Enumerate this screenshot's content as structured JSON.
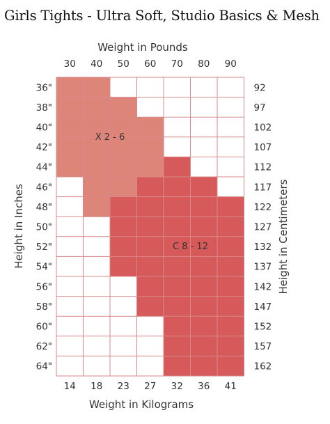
{
  "page": {
    "title": "Girls Tights - Ultra Soft, Studio Basics & Mesh"
  },
  "chart_data": {
    "type": "heatmap",
    "x_top_label": "Weight in Pounds",
    "x_top_ticks": [
      "30",
      "40",
      "50",
      "60",
      "70",
      "80",
      "90"
    ],
    "x_bottom_label": "Weight in Kilograms",
    "x_bottom_ticks": [
      "14",
      "18",
      "23",
      "27",
      "32",
      "36",
      "41"
    ],
    "y_left_label": "Height in Inches",
    "y_left_ticks": [
      "36\"",
      "38\"",
      "40\"",
      "42\"",
      "44\"",
      "46\"",
      "48\"",
      "50\"",
      "52\"",
      "54\"",
      "56\"",
      "58\"",
      "60\"",
      "62\"",
      "64\""
    ],
    "y_right_label": "Height in Centimeters",
    "y_right_ticks": [
      "92",
      "97",
      "102",
      "107",
      "112",
      "117",
      "122",
      "127",
      "132",
      "137",
      "142",
      "147",
      "152",
      "157",
      "162"
    ],
    "sizes": [
      {
        "name": "X 2 - 6",
        "color": "#de8579",
        "cells": [
          [
            0,
            0
          ],
          [
            0,
            1
          ],
          [
            1,
            0
          ],
          [
            1,
            1
          ],
          [
            1,
            2
          ],
          [
            2,
            0
          ],
          [
            2,
            1
          ],
          [
            2,
            2
          ],
          [
            2,
            3
          ],
          [
            3,
            0
          ],
          [
            3,
            1
          ],
          [
            3,
            2
          ],
          [
            3,
            3
          ],
          [
            4,
            0
          ],
          [
            4,
            1
          ],
          [
            4,
            2
          ],
          [
            4,
            3
          ],
          [
            5,
            1
          ],
          [
            5,
            2
          ],
          [
            6,
            1
          ]
        ]
      },
      {
        "name": "C 8 - 12",
        "color": "#d65a5a",
        "cells": [
          [
            4,
            4
          ],
          [
            5,
            3
          ],
          [
            5,
            4
          ],
          [
            5,
            5
          ],
          [
            6,
            2
          ],
          [
            6,
            3
          ],
          [
            6,
            4
          ],
          [
            6,
            5
          ],
          [
            6,
            6
          ],
          [
            7,
            2
          ],
          [
            7,
            3
          ],
          [
            7,
            4
          ],
          [
            7,
            5
          ],
          [
            7,
            6
          ],
          [
            8,
            2
          ],
          [
            8,
            3
          ],
          [
            8,
            4
          ],
          [
            8,
            5
          ],
          [
            8,
            6
          ],
          [
            9,
            2
          ],
          [
            9,
            3
          ],
          [
            9,
            4
          ],
          [
            9,
            5
          ],
          [
            9,
            6
          ],
          [
            10,
            3
          ],
          [
            10,
            4
          ],
          [
            10,
            5
          ],
          [
            10,
            6
          ],
          [
            11,
            3
          ],
          [
            11,
            4
          ],
          [
            11,
            5
          ],
          [
            11,
            6
          ],
          [
            12,
            4
          ],
          [
            12,
            5
          ],
          [
            12,
            6
          ],
          [
            13,
            4
          ],
          [
            13,
            5
          ],
          [
            13,
            6
          ],
          [
            14,
            4
          ],
          [
            14,
            5
          ],
          [
            14,
            6
          ]
        ]
      }
    ],
    "grid_color": "#d9888a",
    "grid": true
  }
}
